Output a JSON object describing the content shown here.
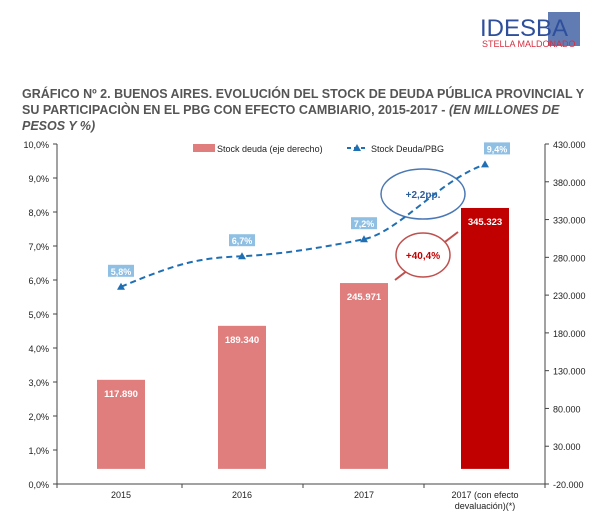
{
  "logo": {
    "main": "IDESBA",
    "sub": "STELLA MALDONADO"
  },
  "title": {
    "main": "GRÁFICO Nº 2. BUENOS AIRES. EVOLUCIÓN DEL STOCK DE DEUDA PÚBLICA PROVINCIAL Y SU PARTICIPACIÒN EN EL PBG CON EFECTO CAMBIARIO, 2015-2017 - ",
    "units": "(EN MILLONES DE PESOS Y %)"
  },
  "chart_data": {
    "type": "bar+line",
    "categories": [
      "2015",
      "2016",
      "2017",
      "2017 (con efecto devaluación)(*)"
    ],
    "category_lines": [
      [
        "2015"
      ],
      [
        "2016"
      ],
      [
        "2017"
      ],
      [
        "2017 (con efecto",
        "devaluación)(*)"
      ]
    ],
    "series": [
      {
        "name": "Stock deuda (eje derecho)",
        "type": "bar",
        "axis": "right",
        "values": [
          117890,
          189340,
          245971,
          345323
        ],
        "labels": [
          "117.890",
          "189.340",
          "245.971",
          "345.323"
        ],
        "colors": [
          "#e07e7e",
          "#e07e7e",
          "#e07e7e",
          "#c00000"
        ]
      },
      {
        "name": "Stock Deuda/PBG",
        "type": "line",
        "axis": "left",
        "values": [
          5.8,
          6.7,
          7.2,
          9.4
        ],
        "labels": [
          "5,8%",
          "6,7%",
          "7,2%",
          "9,4%"
        ],
        "color": "#1f6fb5"
      }
    ],
    "left_axis": {
      "range": [
        0,
        10
      ],
      "ticks": [
        "0,0%",
        "1,0%",
        "2,0%",
        "3,0%",
        "4,0%",
        "5,0%",
        "6,0%",
        "7,0%",
        "8,0%",
        "9,0%",
        "10,0%"
      ]
    },
    "right_axis": {
      "range": [
        -20000,
        430000
      ],
      "ticks": [
        "-20.000",
        "30.000",
        "80.000",
        "130.000",
        "180.000",
        "230.000",
        "280.000",
        "330.000",
        "380.000",
        "430.000"
      ]
    },
    "annotations": [
      {
        "text": "+2,2pp.",
        "color": "#4a78b5"
      },
      {
        "text": "+40,4%",
        "color": "#c0504d"
      }
    ],
    "legend": "top",
    "grid": false
  }
}
